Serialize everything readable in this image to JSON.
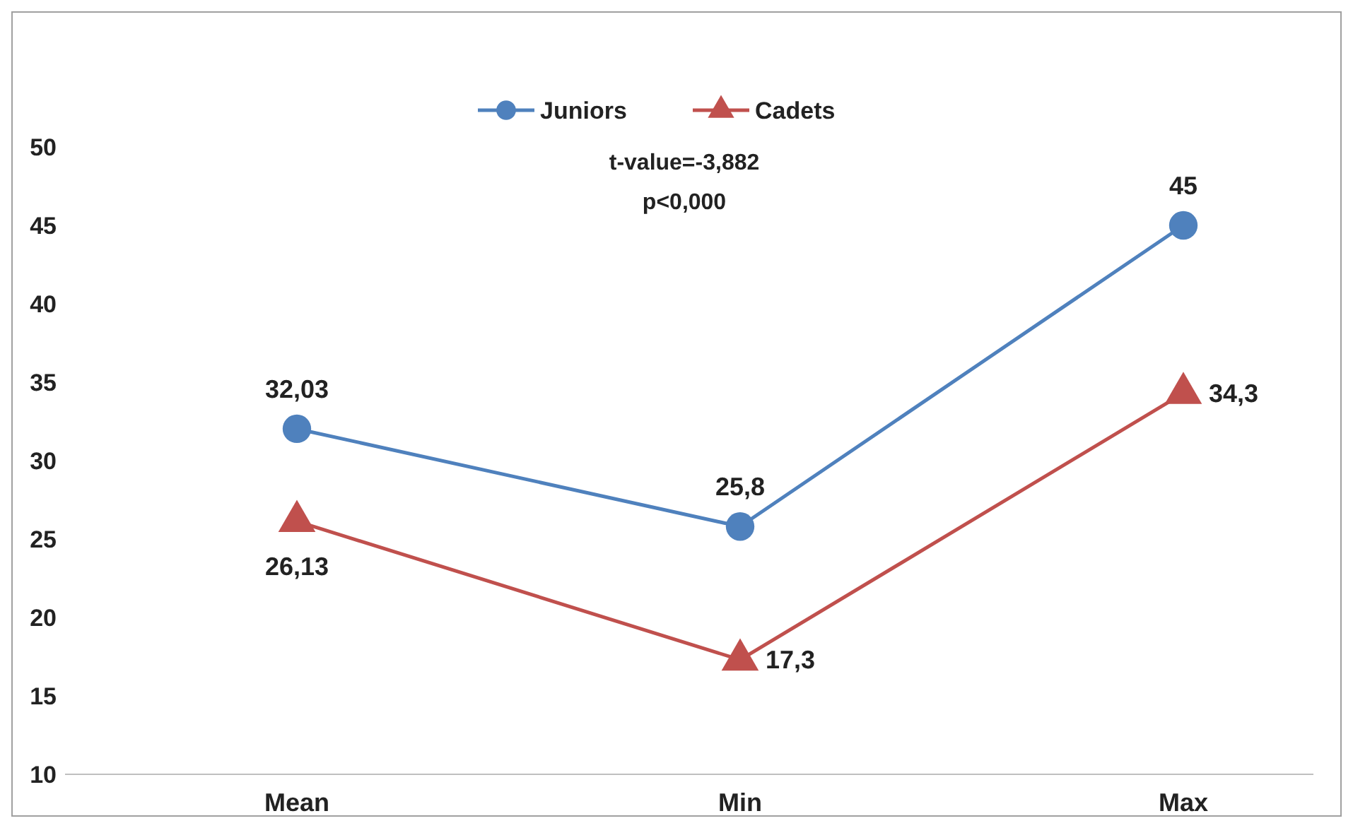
{
  "chart_data": {
    "type": "line",
    "categories": [
      "Mean",
      "Min",
      "Max"
    ],
    "series": [
      {
        "name": "Juniors",
        "color": "#4f81bd",
        "marker": "circle",
        "values": [
          32.03,
          25.8,
          45
        ],
        "value_labels": [
          "32,03",
          "25,8",
          "45"
        ]
      },
      {
        "name": "Cadets",
        "color": "#c0504d",
        "marker": "triangle",
        "values": [
          26.13,
          17.3,
          34.3
        ],
        "value_labels": [
          "26,13",
          "17,3",
          "34,3"
        ]
      }
    ],
    "ylim": [
      10,
      50
    ],
    "yticks": [
      10,
      15,
      20,
      25,
      30,
      35,
      40,
      45,
      50
    ],
    "grid": false,
    "legend": "top",
    "annotations": [
      "t-value=-3,882",
      "p<0,000"
    ]
  }
}
